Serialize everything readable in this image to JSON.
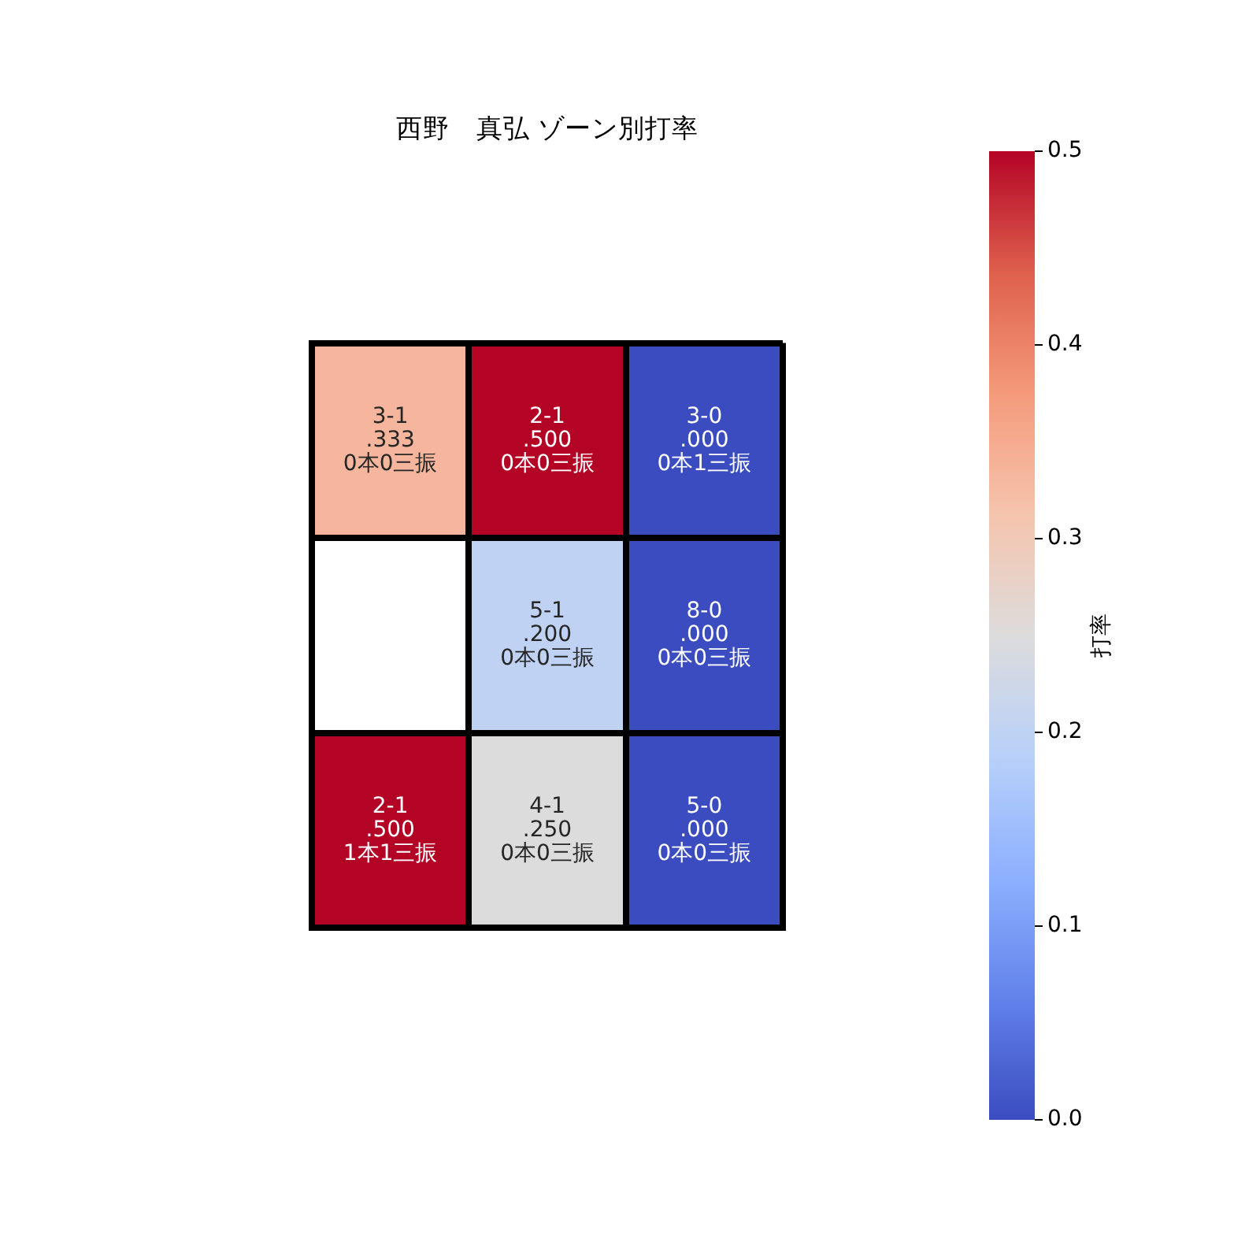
{
  "chart_data": {
    "type": "heatmap",
    "title": "西野　真弘 ゾーン別打率",
    "categories": [
      null,
      null,
      null
    ],
    "y_categories": [
      null,
      null,
      null
    ],
    "cells": [
      [
        0.333,
        0.5,
        0
      ],
      [
        null,
        0.2,
        0
      ],
      [
        0.5,
        0.25,
        0
      ]
    ],
    "cell_labels": [
      [
        "3-1\n.333\n0本0三振",
        "2-1\n.500\n0本0三振",
        "3-0\n.000\n0本1三振"
      ],
      [
        null,
        "5-1\n.200\n0本0三振",
        "8-0\n.000\n0本0三振"
      ],
      [
        "2-1\n.500\n1本1三振",
        "4-1\n.250\n0本0三振",
        "5-0\n.000\n0本0三振"
      ]
    ],
    "clabel": "打率",
    "clim": [
      0,
      0.5
    ],
    "cticks": [
      {
        "value": 0,
        "label": "0.0"
      },
      {
        "value": 0.1,
        "label": "0.1"
      },
      {
        "value": 0.2,
        "label": "0.2"
      },
      {
        "value": 0.3,
        "label": "0.3"
      },
      {
        "value": 0.4,
        "label": "0.4"
      },
      {
        "value": 0.5,
        "label": "0.5"
      }
    ]
  }
}
